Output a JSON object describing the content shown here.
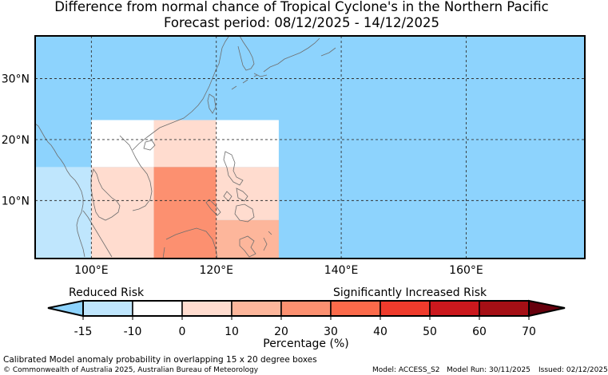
{
  "title": {
    "line1": "Difference from normal chance of Tropical Cyclone's in the Northern Pacific",
    "line2": "Forecast period: 08/12/2025 - 14/12/2025"
  },
  "map": {
    "background_color": "#8dd3fd",
    "lon_range": [
      91,
      179
    ],
    "lat_range": [
      0.5,
      37
    ],
    "lon_ticks": [
      {
        "value": 100,
        "label": "100°E"
      },
      {
        "value": 120,
        "label": "120°E"
      },
      {
        "value": 140,
        "label": "140°E"
      },
      {
        "value": 160,
        "label": "160°E"
      }
    ],
    "lat_ticks": [
      {
        "value": 10,
        "label": "10°N"
      },
      {
        "value": 20,
        "label": "20°N"
      },
      {
        "value": 30,
        "label": "30°N"
      }
    ],
    "anomaly_cells": [
      {
        "lon": [
          91,
          100
        ],
        "lat": [
          0.5,
          15.5
        ],
        "color": "#bfe6fd"
      },
      {
        "lon": [
          100,
          110
        ],
        "lat": [
          15.5,
          23.2
        ],
        "color": "#ffffff"
      },
      {
        "lon": [
          110,
          120
        ],
        "lat": [
          15.5,
          23.2
        ],
        "color": "#ffdccf"
      },
      {
        "lon": [
          120,
          130
        ],
        "lat": [
          15.5,
          23.2
        ],
        "color": "#ffffff"
      },
      {
        "lon": [
          100,
          110
        ],
        "lat": [
          0.5,
          15.5
        ],
        "color": "#ffdccf"
      },
      {
        "lon": [
          110,
          120
        ],
        "lat": [
          0.5,
          15.5
        ],
        "color": "#fc9070"
      },
      {
        "lon": [
          120,
          130
        ],
        "lat": [
          6.8,
          15.5
        ],
        "color": "#ffdccf"
      },
      {
        "lon": [
          120,
          130
        ],
        "lat": [
          0.5,
          6.8
        ],
        "color": "#fdb69b"
      }
    ]
  },
  "colorbar": {
    "label_left": "Reduced Risk",
    "label_right": "Significantly Increased Risk",
    "axis_label": "Percentage (%)",
    "ticks": [
      "-15",
      "-10",
      "0",
      "10",
      "20",
      "30",
      "40",
      "50",
      "60",
      "70"
    ],
    "extend_low_color": "#8dd3fd",
    "extend_high_color": "#67000d",
    "bins": [
      {
        "from": -15,
        "to": -10,
        "color": "#bfe6fd"
      },
      {
        "from": -10,
        "to": 0,
        "color": "#ffffff"
      },
      {
        "from": 0,
        "to": 10,
        "color": "#ffdccf"
      },
      {
        "from": 10,
        "to": 20,
        "color": "#fdb69b"
      },
      {
        "from": 20,
        "to": 30,
        "color": "#fc9070"
      },
      {
        "from": 30,
        "to": 40,
        "color": "#fb6a4a"
      },
      {
        "from": 40,
        "to": 50,
        "color": "#ef3b2c"
      },
      {
        "from": 50,
        "to": 60,
        "color": "#cb181d"
      },
      {
        "from": 60,
        "to": 70,
        "color": "#a50f15"
      }
    ]
  },
  "footer": {
    "note": "Calibrated Model anomaly probability in overlapping 15 x 20 degree boxes",
    "copyright": "© Commonwealth of Australia 2025, Australian Bureau of Meteorology",
    "model": "Model: ACCESS_S2",
    "model_run": "Model Run: 30/11/2025",
    "issued": "Issued: 02/12/2025"
  }
}
